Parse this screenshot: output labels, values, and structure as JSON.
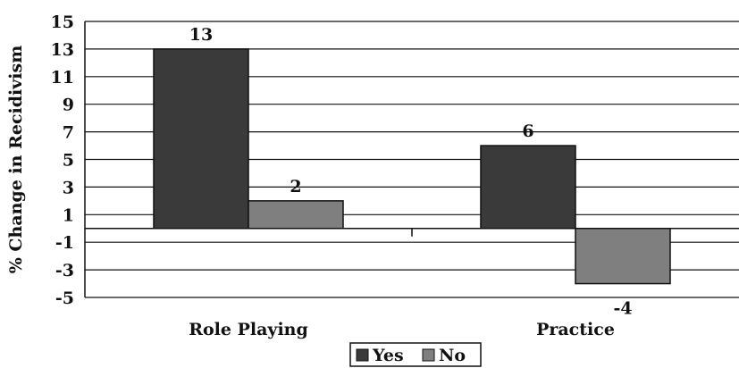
{
  "chart_data": {
    "type": "bar",
    "title": "",
    "xlabel": "",
    "ylabel": "% Change in Recidivism",
    "categories": [
      "Role Playing",
      "Practice"
    ],
    "series": [
      {
        "name": "Yes",
        "values": [
          13,
          6
        ],
        "color": "#3a3a3a"
      },
      {
        "name": "No",
        "values": [
          2,
          -4
        ],
        "color": "#7f7f7f"
      }
    ],
    "data_labels": [
      [
        "13",
        "6"
      ],
      [
        "2",
        "-4"
      ]
    ],
    "yticks": [
      15,
      13,
      11,
      9,
      7,
      5,
      3,
      1,
      -1,
      -3,
      -5
    ],
    "ylim": [
      -5,
      15
    ],
    "grid": true,
    "legend_position": "bottom"
  }
}
